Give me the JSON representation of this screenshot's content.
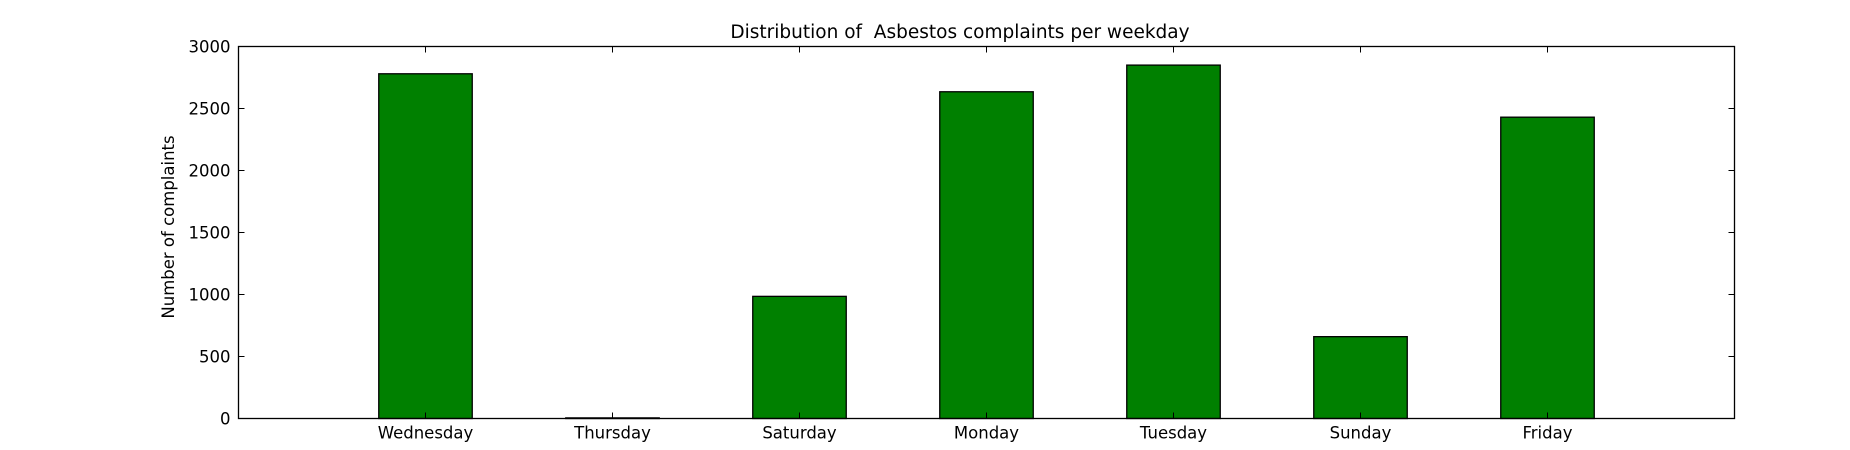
{
  "chart_data": {
    "type": "bar",
    "title": "Distribution of  Asbestos complaints per weekday",
    "xlabel": "",
    "ylabel": "Number of complaints",
    "categories": [
      "Wednesday",
      "Thursday",
      "Saturday",
      "Monday",
      "Tuesday",
      "Sunday",
      "Friday"
    ],
    "values": [
      2780,
      5,
      985,
      2635,
      2850,
      660,
      2430
    ],
    "ylim": [
      0,
      3000
    ],
    "yticks": [
      0,
      500,
      1000,
      1500,
      2000,
      2500,
      3000
    ],
    "grid": false,
    "legend": "none",
    "bar_color": "#008000",
    "edge_color": "#000000"
  }
}
